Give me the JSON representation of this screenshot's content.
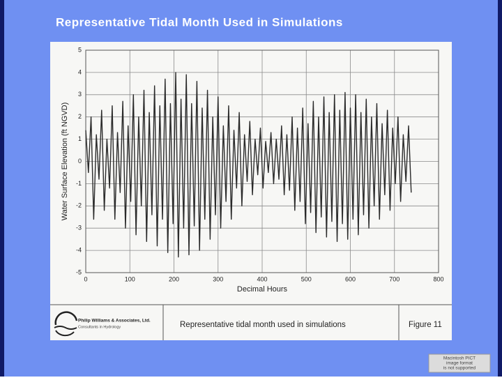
{
  "slide": {
    "title": "Representative Tidal Month Used in Simulations"
  },
  "chart_data": {
    "type": "line",
    "ylabel": "Water Surface Elevation (ft NGVD)",
    "xlabel": "Decimal Hours",
    "x": [
      0,
      6,
      12,
      18,
      24,
      30,
      36,
      42,
      48,
      54,
      60,
      66,
      72,
      78,
      84,
      90,
      96,
      102,
      108,
      114,
      120,
      126,
      132,
      138,
      144,
      150,
      156,
      162,
      168,
      174,
      180,
      186,
      192,
      198,
      204,
      210,
      216,
      222,
      228,
      234,
      240,
      246,
      252,
      258,
      264,
      270,
      276,
      282,
      288,
      294,
      300,
      306,
      312,
      318,
      324,
      330,
      336,
      342,
      348,
      354,
      360,
      366,
      372,
      378,
      384,
      390,
      396,
      402,
      408,
      414,
      420,
      426,
      432,
      438,
      444,
      450,
      456,
      462,
      468,
      474,
      480,
      486,
      492,
      498,
      504,
      510,
      516,
      522,
      528,
      534,
      540,
      546,
      552,
      558,
      564,
      570,
      576,
      582,
      588,
      594,
      600,
      606,
      612,
      618,
      624,
      630,
      636,
      642,
      648,
      654,
      660,
      666,
      672,
      678,
      684,
      690,
      696,
      702,
      708,
      714,
      720,
      726,
      732,
      738
    ],
    "series": [
      {
        "color": "#2a2a2a",
        "values": [
          1.4,
          -0.5,
          2.0,
          -2.6,
          1.2,
          -0.8,
          2.3,
          -2.2,
          1.0,
          -1.2,
          2.5,
          -2.6,
          1.3,
          -1.4,
          2.7,
          -3.0,
          1.6,
          -1.8,
          3.0,
          -3.3,
          2.0,
          -2.0,
          3.2,
          -3.6,
          2.2,
          -2.4,
          3.4,
          -3.8,
          2.5,
          -2.6,
          3.7,
          -4.1,
          2.6,
          -2.8,
          4.0,
          -4.3,
          2.8,
          -3.0,
          3.9,
          -4.2,
          2.6,
          -2.9,
          3.6,
          -4.0,
          2.4,
          -2.6,
          3.2,
          -3.5,
          2.0,
          -2.4,
          2.9,
          -3.0,
          1.6,
          -1.8,
          2.5,
          -2.6,
          1.4,
          -1.2,
          2.2,
          -2.0,
          1.2,
          -0.9,
          1.8,
          -1.5,
          1.0,
          -0.6,
          1.5,
          -1.2,
          0.9,
          -0.5,
          1.3,
          -1.0,
          1.0,
          -0.8,
          1.6,
          -1.5,
          1.2,
          -1.3,
          2.0,
          -2.2,
          1.5,
          -1.8,
          2.4,
          -2.8,
          1.7,
          -2.3,
          2.7,
          -3.2,
          2.0,
          -2.5,
          2.9,
          -3.4,
          2.2,
          -2.7,
          3.0,
          -3.6,
          2.3,
          -2.8,
          3.1,
          -3.5,
          2.4,
          -2.6,
          3.0,
          -3.3,
          2.2,
          -2.4,
          2.8,
          -3.0,
          2.0,
          -2.0,
          2.6,
          -2.6,
          1.7,
          -1.5,
          2.3,
          -2.2,
          1.5,
          -1.0,
          2.0,
          -1.8,
          1.2,
          -0.9,
          1.6,
          -1.4
        ]
      }
    ],
    "xlim": [
      0,
      800
    ],
    "xticks": [
      0,
      100,
      200,
      300,
      400,
      500,
      600,
      700,
      800
    ],
    "ylim": [
      -5,
      5
    ],
    "yticks": [
      -5,
      -4,
      -3,
      -2,
      -1,
      0,
      1,
      2,
      3,
      4,
      5
    ],
    "grid": true
  },
  "footer": {
    "company": "Philip Williams & Associates, Ltd.",
    "tagline": "Consultants in Hydrology",
    "caption": "Representative tidal month used in simulations",
    "figure": "Figure 11"
  },
  "notice": [
    "Macintosh PICT",
    "image format",
    "is not supported"
  ]
}
